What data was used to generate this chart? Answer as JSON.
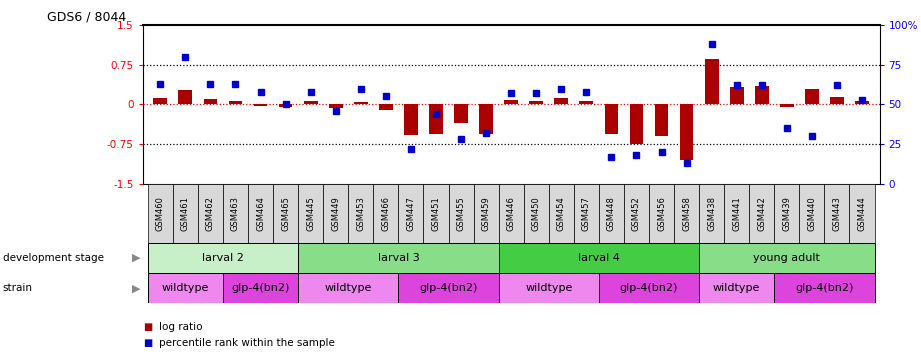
{
  "title": "GDS6 / 8044",
  "samples": [
    "GSM460",
    "GSM461",
    "GSM462",
    "GSM463",
    "GSM464",
    "GSM465",
    "GSM445",
    "GSM449",
    "GSM453",
    "GSM466",
    "GSM447",
    "GSM451",
    "GSM455",
    "GSM459",
    "GSM446",
    "GSM450",
    "GSM454",
    "GSM457",
    "GSM448",
    "GSM452",
    "GSM456",
    "GSM458",
    "GSM438",
    "GSM441",
    "GSM442",
    "GSM439",
    "GSM440",
    "GSM443",
    "GSM444"
  ],
  "log_ratio": [
    0.12,
    0.28,
    0.1,
    0.07,
    -0.03,
    -0.04,
    0.07,
    -0.07,
    0.04,
    -0.1,
    -0.58,
    -0.55,
    -0.35,
    -0.55,
    0.08,
    0.07,
    0.12,
    0.07,
    -0.55,
    -0.75,
    -0.6,
    -1.05,
    0.85,
    0.32,
    0.35,
    -0.05,
    0.3,
    0.14,
    0.06
  ],
  "percentile": [
    63,
    80,
    63,
    63,
    58,
    50,
    58,
    46,
    60,
    55,
    22,
    44,
    28,
    32,
    57,
    57,
    60,
    58,
    17,
    18,
    20,
    13,
    88,
    62,
    62,
    35,
    30,
    62,
    53
  ],
  "dev_stage_groups": [
    {
      "label": "larval 2",
      "start": 0,
      "end": 6,
      "color": "#c8f0c8"
    },
    {
      "label": "larval 3",
      "start": 6,
      "end": 14,
      "color": "#88dd88"
    },
    {
      "label": "larval 4",
      "start": 14,
      "end": 22,
      "color": "#44cc44"
    },
    {
      "label": "young adult",
      "start": 22,
      "end": 29,
      "color": "#88dd88"
    }
  ],
  "strain_groups": [
    {
      "label": "wildtype",
      "start": 0,
      "end": 3,
      "color": "#ee88ee"
    },
    {
      "label": "glp-4(bn2)",
      "start": 3,
      "end": 6,
      "color": "#dd44dd"
    },
    {
      "label": "wildtype",
      "start": 6,
      "end": 10,
      "color": "#ee88ee"
    },
    {
      "label": "glp-4(bn2)",
      "start": 10,
      "end": 14,
      "color": "#dd44dd"
    },
    {
      "label": "wildtype",
      "start": 14,
      "end": 18,
      "color": "#ee88ee"
    },
    {
      "label": "glp-4(bn2)",
      "start": 18,
      "end": 22,
      "color": "#dd44dd"
    },
    {
      "label": "wildtype",
      "start": 22,
      "end": 25,
      "color": "#ee88ee"
    },
    {
      "label": "glp-4(bn2)",
      "start": 25,
      "end": 29,
      "color": "#dd44dd"
    }
  ],
  "bar_color": "#aa0000",
  "dot_color": "#0000cc",
  "ylim": [
    -1.5,
    1.5
  ],
  "yticks_left": [
    -1.5,
    -0.75,
    0.0,
    0.75,
    1.5
  ],
  "ytick_labels_left": [
    "-1.5",
    "-0.75",
    "0",
    "0.75",
    "1.5"
  ],
  "yticks_right_vals": [
    0,
    25,
    50,
    75,
    100
  ],
  "ytick_labels_right": [
    "0",
    "25",
    "50",
    "75",
    "100%"
  ],
  "hlines": [
    0.75,
    0.0,
    -0.75
  ],
  "hline_styles": [
    "dotted",
    "dotted",
    "dotted"
  ],
  "hline_colors": [
    "black",
    "red",
    "black"
  ],
  "bar_width": 0.55
}
